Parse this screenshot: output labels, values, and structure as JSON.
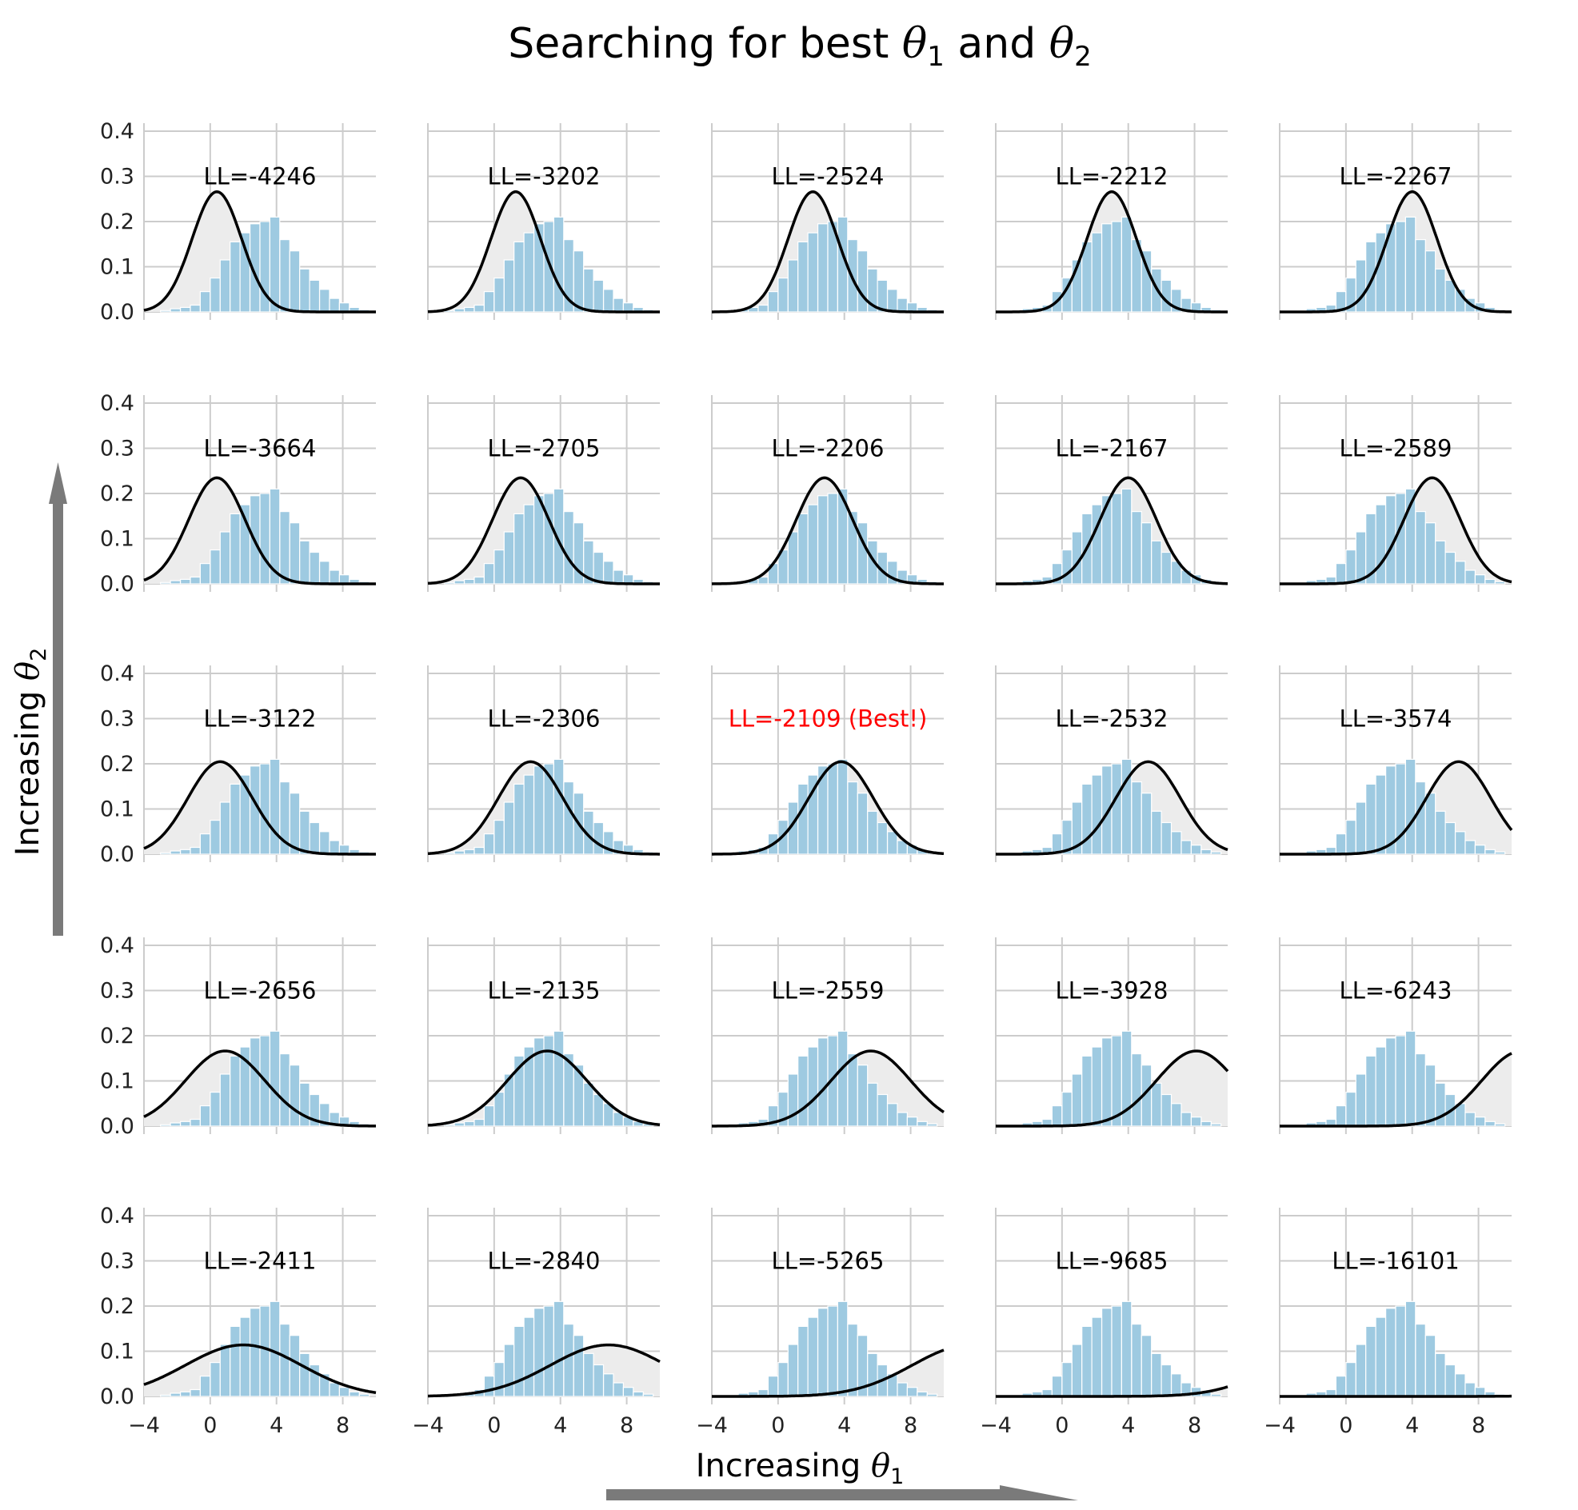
{
  "title": {
    "prefix": "Searching for best ",
    "theta1": "θ",
    "sub1": "1",
    "middle": " and ",
    "theta2": "θ",
    "sub2": "2"
  },
  "xaxis_label": {
    "text": "Increasing ",
    "theta": "θ",
    "sub": "1"
  },
  "yaxis_label": {
    "text": "Increasing ",
    "theta": "θ",
    "sub": "2"
  },
  "colors": {
    "bars": "#9ecae1",
    "curve": "#000000",
    "shade": "#ececec",
    "grid": "#cccccc",
    "best": "#ff0000",
    "arrow": "#7a7a7a"
  },
  "chart_data": {
    "type": "bar",
    "layout": "5x5 grid of small multiples",
    "xlim": [
      -4,
      10
    ],
    "ylim": [
      0,
      0.4
    ],
    "x_ticks": [
      -4,
      0,
      4,
      8
    ],
    "x_tick_labels": [
      "−4",
      "0",
      "4",
      "8"
    ],
    "y_ticks": [
      0,
      0.1,
      0.2,
      0.3,
      0.4
    ],
    "y_tick_labels": [
      "0.0",
      "0.1",
      "0.2",
      "0.3",
      "0.4"
    ],
    "grid": true,
    "histogram": {
      "bin_start": -3,
      "bin_width": 0.6,
      "heights": [
        0.003,
        0.007,
        0.01,
        0.015,
        0.045,
        0.075,
        0.115,
        0.155,
        0.175,
        0.195,
        0.2,
        0.21,
        0.16,
        0.135,
        0.095,
        0.07,
        0.05,
        0.03,
        0.02,
        0.01,
        0.005
      ]
    },
    "panels": [
      [
        {
          "label": "LL=-4246",
          "mean": 0.4,
          "sd": 1.5
        },
        {
          "label": "LL=-3202",
          "mean": 1.3,
          "sd": 1.5
        },
        {
          "label": "LL=-2524",
          "mean": 2.1,
          "sd": 1.5
        },
        {
          "label": "LL=-2212",
          "mean": 3.0,
          "sd": 1.5
        },
        {
          "label": "LL=-2267",
          "mean": 4.0,
          "sd": 1.5
        }
      ],
      [
        {
          "label": "LL=-3664",
          "mean": 0.4,
          "sd": 1.7
        },
        {
          "label": "LL=-2705",
          "mean": 1.6,
          "sd": 1.7
        },
        {
          "label": "LL=-2206",
          "mean": 2.8,
          "sd": 1.7
        },
        {
          "label": "LL=-2167",
          "mean": 4.0,
          "sd": 1.7
        },
        {
          "label": "LL=-2589",
          "mean": 5.2,
          "sd": 1.7
        }
      ],
      [
        {
          "label": "LL=-3122",
          "mean": 0.6,
          "sd": 1.95
        },
        {
          "label": "LL=-2306",
          "mean": 2.2,
          "sd": 1.95
        },
        {
          "label": "LL=-2109 (Best!)",
          "mean": 3.8,
          "sd": 1.95,
          "best": true
        },
        {
          "label": "LL=-2532",
          "mean": 5.2,
          "sd": 1.95
        },
        {
          "label": "LL=-3574",
          "mean": 6.8,
          "sd": 1.95
        }
      ],
      [
        {
          "label": "LL=-2656",
          "mean": 0.9,
          "sd": 2.4
        },
        {
          "label": "LL=-2135",
          "mean": 3.2,
          "sd": 2.4
        },
        {
          "label": "LL=-2559",
          "mean": 5.6,
          "sd": 2.4
        },
        {
          "label": "LL=-3928",
          "mean": 8.1,
          "sd": 2.4
        },
        {
          "label": "LL=-6243",
          "mean": 10.6,
          "sd": 2.4
        }
      ],
      [
        {
          "label": "LL=-2411",
          "mean": 2.0,
          "sd": 3.5
        },
        {
          "label": "LL=-2840",
          "mean": 6.9,
          "sd": 3.5
        },
        {
          "label": "LL=-5265",
          "mean": 11.6,
          "sd": 3.5
        },
        {
          "label": "LL=-9685",
          "mean": 16.4,
          "sd": 3.5
        },
        {
          "label": "LL=-16101",
          "mean": 21.2,
          "sd": 3.5
        }
      ]
    ]
  }
}
